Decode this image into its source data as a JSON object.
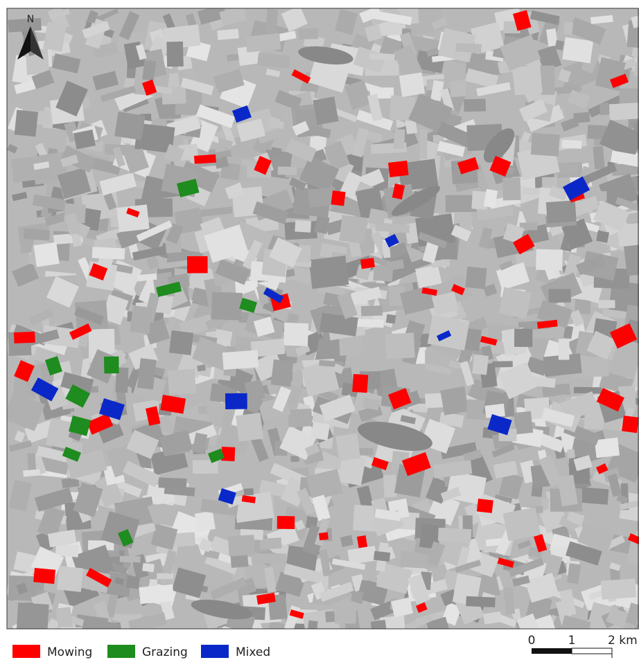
{
  "map": {
    "north_label": "N",
    "legend": [
      {
        "label": "Mowing",
        "color": "#ff0000"
      },
      {
        "label": "Grazing",
        "color": "#1e8c1e"
      },
      {
        "label": "Mixed",
        "color": "#0a28c8"
      }
    ],
    "scale_bar": {
      "labels": [
        "0",
        "1",
        "2 km"
      ]
    }
  }
}
